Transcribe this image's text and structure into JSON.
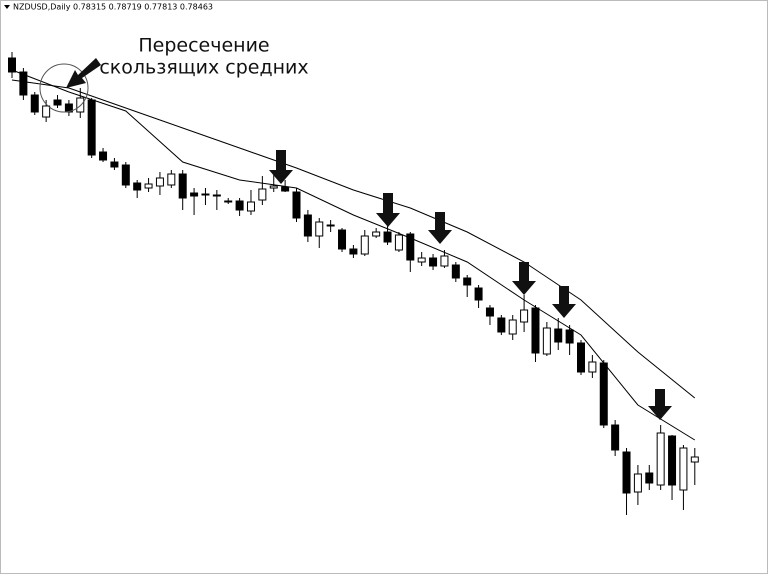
{
  "chart_data": {
    "type": "candlestick",
    "title": "NZDUSD,Daily  0.78315 0.78719 0.77813 0.78463",
    "annotations": [
      "Пересечение",
      "скользящих средних"
    ],
    "up_color": "#ffffff",
    "down_color": "#000000",
    "ylim": [
      0.7652,
      0.88
    ],
    "open": [
      0.8684,
      0.8656,
      0.861,
      0.8566,
      0.86,
      0.8592,
      0.8576,
      0.86,
      0.8496,
      0.8476,
      0.847,
      0.8434,
      0.8424,
      0.8428,
      0.843,
      0.8452,
      0.8414,
      0.8412,
      0.841,
      0.8398,
      0.8398,
      0.8378,
      0.84,
      0.8424,
      0.8426,
      0.8416,
      0.837,
      0.8328,
      0.835,
      0.834,
      0.8302,
      0.8292,
      0.8328,
      0.8336,
      0.83,
      0.8332,
      0.8276,
      0.8284,
      0.8268,
      0.827,
      0.8244,
      0.8224,
      0.8184,
      0.8164,
      0.8132,
      0.8156,
      0.8184,
      0.8092,
      0.8142,
      0.814,
      0.8114,
      0.8056,
      0.8074,
      0.795,
      0.7896,
      0.7816,
      0.7854,
      0.783,
      0.7928,
      0.782,
      0.7876
    ],
    "high": [
      0.8696,
      0.8664,
      0.8616,
      0.86,
      0.861,
      0.86,
      0.8624,
      0.8604,
      0.8504,
      0.8484,
      0.8476,
      0.844,
      0.8444,
      0.8456,
      0.846,
      0.846,
      0.8424,
      0.8424,
      0.842,
      0.8404,
      0.8404,
      0.842,
      0.8448,
      0.845,
      0.844,
      0.8424,
      0.838,
      0.8364,
      0.836,
      0.8344,
      0.831,
      0.834,
      0.8344,
      0.8348,
      0.8336,
      0.8336,
      0.8296,
      0.8292,
      0.83,
      0.8276,
      0.825,
      0.823,
      0.819,
      0.817,
      0.817,
      0.821,
      0.819,
      0.8156,
      0.8164,
      0.815,
      0.812,
      0.809,
      0.808,
      0.796,
      0.7904,
      0.787,
      0.787,
      0.795,
      0.793,
      0.791,
      0.7904
    ],
    "low": [
      0.8644,
      0.86,
      0.857,
      0.8556,
      0.8584,
      0.8568,
      0.8564,
      0.8484,
      0.8476,
      0.846,
      0.8424,
      0.8404,
      0.8416,
      0.841,
      0.8424,
      0.838,
      0.837,
      0.839,
      0.838,
      0.8392,
      0.8368,
      0.837,
      0.839,
      0.8416,
      0.8416,
      0.8356,
      0.8316,
      0.8304,
      0.8336,
      0.8296,
      0.8284,
      0.8288,
      0.8324,
      0.831,
      0.8296,
      0.8256,
      0.8268,
      0.826,
      0.8264,
      0.8236,
      0.8206,
      0.8184,
      0.815,
      0.813,
      0.812,
      0.8136,
      0.8076,
      0.8088,
      0.81,
      0.809,
      0.805,
      0.8044,
      0.7944,
      0.7888,
      0.777,
      0.779,
      0.782,
      0.782,
      0.78,
      0.778,
      0.783
    ],
    "close": [
      0.8656,
      0.861,
      0.8576,
      0.8588,
      0.859,
      0.8576,
      0.8604,
      0.849,
      0.848,
      0.8466,
      0.843,
      0.842,
      0.8432,
      0.8444,
      0.8452,
      0.8404,
      0.8408,
      0.841,
      0.8408,
      0.8396,
      0.838,
      0.8396,
      0.8422,
      0.8428,
      0.8418,
      0.8364,
      0.8328,
      0.8356,
      0.8348,
      0.8302,
      0.8292,
      0.8328,
      0.8336,
      0.8316,
      0.833,
      0.828,
      0.8284,
      0.8268,
      0.8288,
      0.8244,
      0.823,
      0.82,
      0.8168,
      0.8136,
      0.816,
      0.818,
      0.8094,
      0.8144,
      0.8116,
      0.8114,
      0.8056,
      0.8076,
      0.795,
      0.79,
      0.7814,
      0.7852,
      0.7834,
      0.7934,
      0.783,
      0.7904,
      0.7886
    ],
    "lines": [
      {
        "color": "#000000",
        "x": [
          0,
          5,
          10,
          15,
          20,
          25,
          30,
          35,
          40,
          45,
          50,
          55,
          60
        ],
        "values": [
          0.864,
          0.8624,
          0.8584,
          0.8544,
          0.8504,
          0.8464,
          0.842,
          0.8384,
          0.8336,
          0.8276,
          0.82,
          0.8096,
          0.8004
        ]
      },
      {
        "color": "#000000",
        "x": [
          0,
          5,
          10,
          15,
          20,
          25,
          30,
          35,
          40,
          45,
          50,
          55,
          60
        ],
        "values": [
          0.866,
          0.8616,
          0.8578,
          0.8476,
          0.844,
          0.8424,
          0.837,
          0.8324,
          0.8276,
          0.82,
          0.813,
          0.799,
          0.792
        ]
      }
    ]
  }
}
